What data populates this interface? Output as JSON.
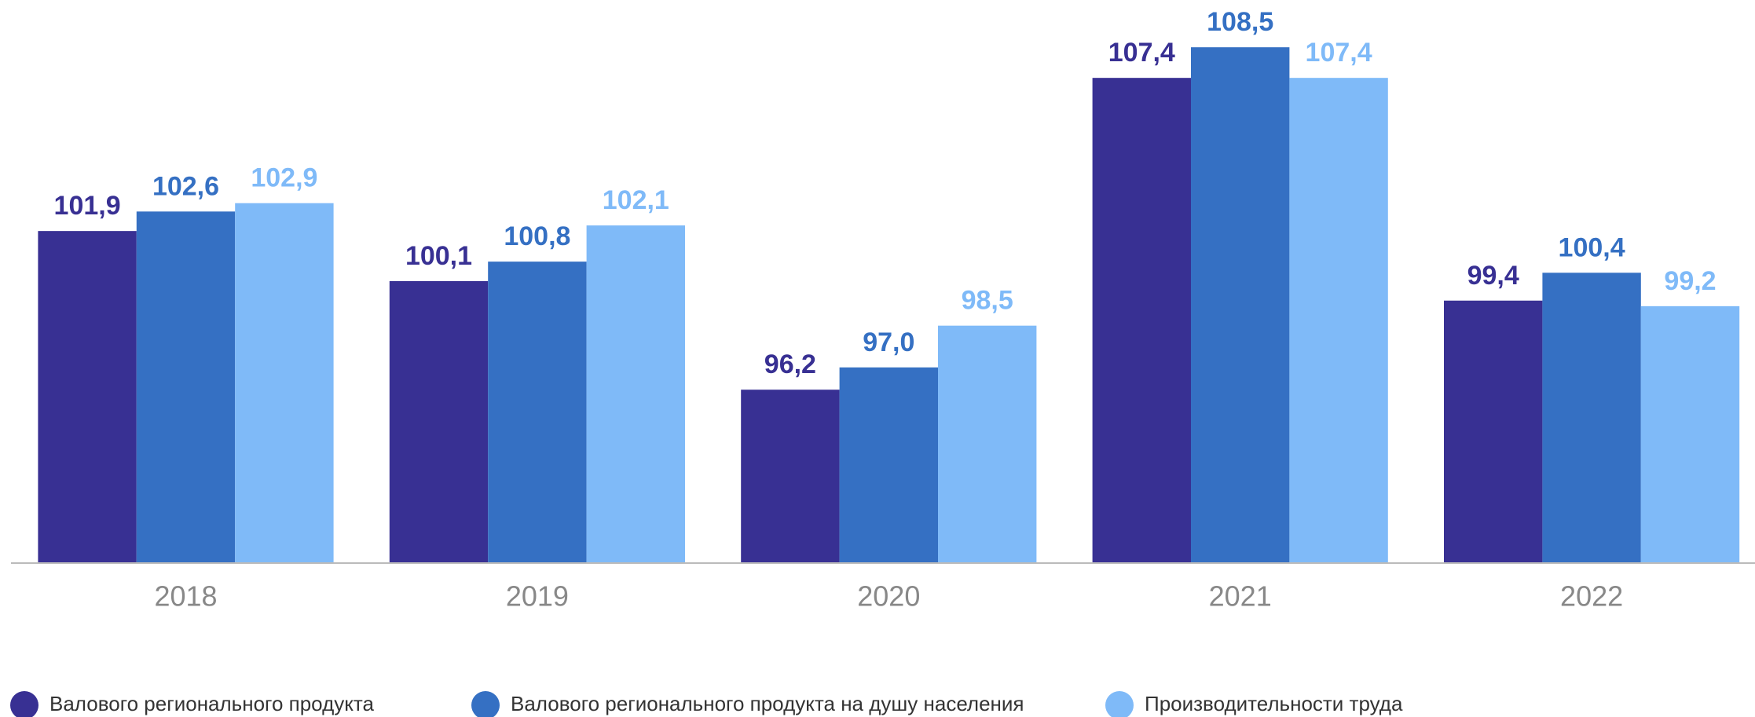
{
  "chart_data": {
    "type": "bar",
    "categories": [
      "2018",
      "2019",
      "2020",
      "2021",
      "2022"
    ],
    "ylim": [
      90,
      110
    ],
    "series": [
      {
        "name": "Валового регионального продукта",
        "color": "#383093",
        "values": [
          101.9,
          100.1,
          96.2,
          107.4,
          99.4
        ],
        "value_labels": [
          "101,9",
          "100,1",
          "96,2",
          "107,4",
          "99,4"
        ]
      },
      {
        "name": "Валового регионального продукта на душу населения",
        "color": "#3570c3",
        "values": [
          102.6,
          100.8,
          97.0,
          108.5,
          100.4
        ],
        "value_labels": [
          "102,6",
          "100,8",
          "97,0",
          "108,5",
          "100,4"
        ]
      },
      {
        "name": "Производительности труда",
        "color": "#7fbaf8",
        "values": [
          102.9,
          102.1,
          98.5,
          107.4,
          99.2
        ],
        "value_labels": [
          "102,9",
          "102,1",
          "98,5",
          "107,4",
          "99,2"
        ]
      }
    ]
  }
}
